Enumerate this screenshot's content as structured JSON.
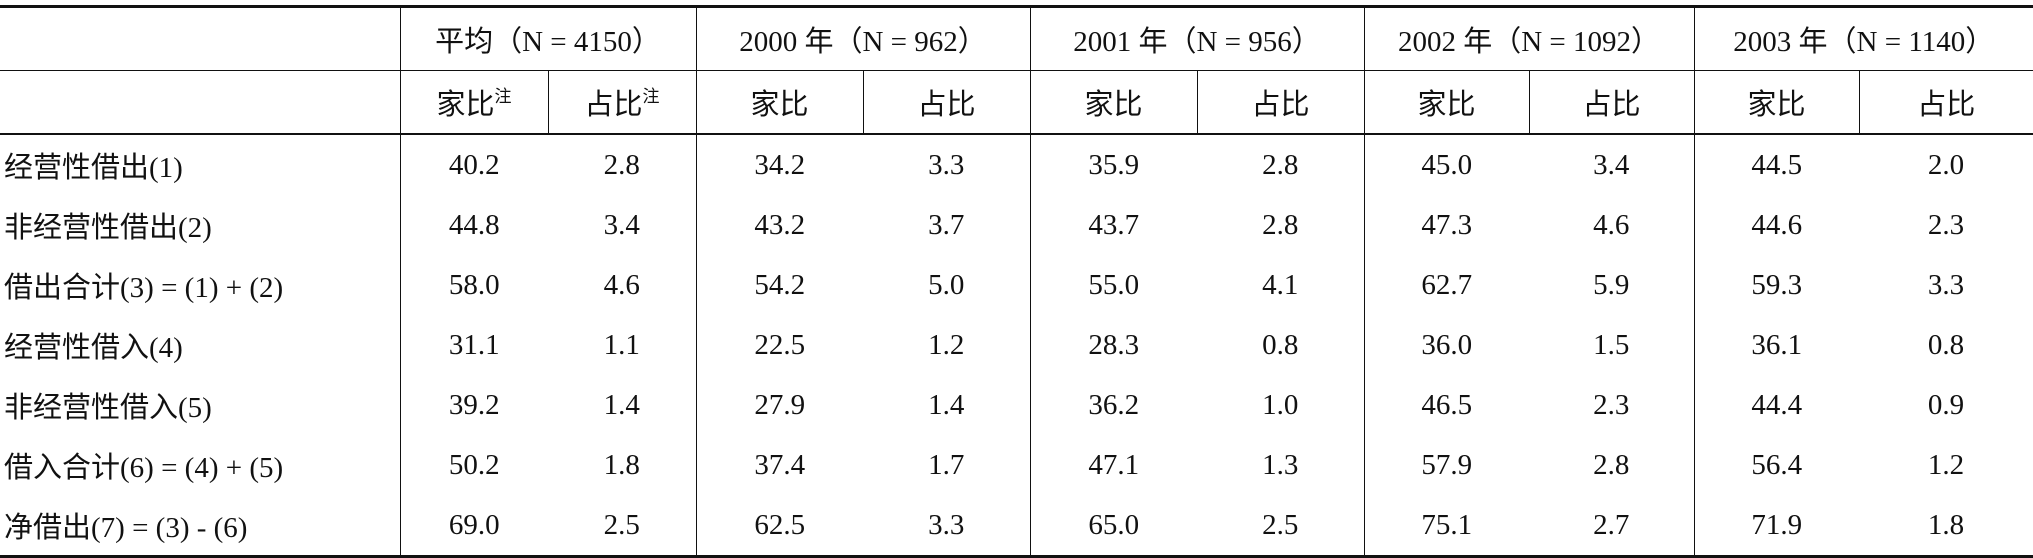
{
  "table": {
    "groups": [
      "平均（N = 4150）",
      "2000 年（N = 962）",
      "2001 年（N = 956）",
      "2002 年（N = 1092）",
      "2003 年（N = 1140）"
    ],
    "subheaders": [
      {
        "text": "家比",
        "note": "注"
      },
      {
        "text": "占比",
        "note": "注"
      },
      {
        "text": "家比"
      },
      {
        "text": "占比"
      },
      {
        "text": "家比"
      },
      {
        "text": "占比"
      },
      {
        "text": "家比"
      },
      {
        "text": "占比"
      },
      {
        "text": "家比"
      },
      {
        "text": "占比"
      }
    ],
    "rows": [
      {
        "label": "经营性借出(1)",
        "values": [
          "40.2",
          "2.8",
          "34.2",
          "3.3",
          "35.9",
          "2.8",
          "45.0",
          "3.4",
          "44.5",
          "2.0"
        ]
      },
      {
        "label": "非经营性借出(2)",
        "values": [
          "44.8",
          "3.4",
          "43.2",
          "3.7",
          "43.7",
          "2.8",
          "47.3",
          "4.6",
          "44.6",
          "2.3"
        ]
      },
      {
        "label": "借出合计(3) = (1) + (2)",
        "values": [
          "58.0",
          "4.6",
          "54.2",
          "5.0",
          "55.0",
          "4.1",
          "62.7",
          "5.9",
          "59.3",
          "3.3"
        ]
      },
      {
        "label": "经营性借入(4)",
        "values": [
          "31.1",
          "1.1",
          "22.5",
          "1.2",
          "28.3",
          "0.8",
          "36.0",
          "1.5",
          "36.1",
          "0.8"
        ]
      },
      {
        "label": "非经营性借入(5)",
        "values": [
          "39.2",
          "1.4",
          "27.9",
          "1.4",
          "36.2",
          "1.0",
          "46.5",
          "2.3",
          "44.4",
          "0.9"
        ]
      },
      {
        "label": "借入合计(6) = (4) + (5)",
        "values": [
          "50.2",
          "1.8",
          "37.4",
          "1.7",
          "47.1",
          "1.3",
          "57.9",
          "2.8",
          "56.4",
          "1.2"
        ]
      },
      {
        "label": "净借出(7) = (3) - (6)",
        "values": [
          "69.0",
          "2.5",
          "62.5",
          "3.3",
          "65.0",
          "2.5",
          "75.1",
          "2.7",
          "71.9",
          "1.8"
        ]
      }
    ]
  }
}
